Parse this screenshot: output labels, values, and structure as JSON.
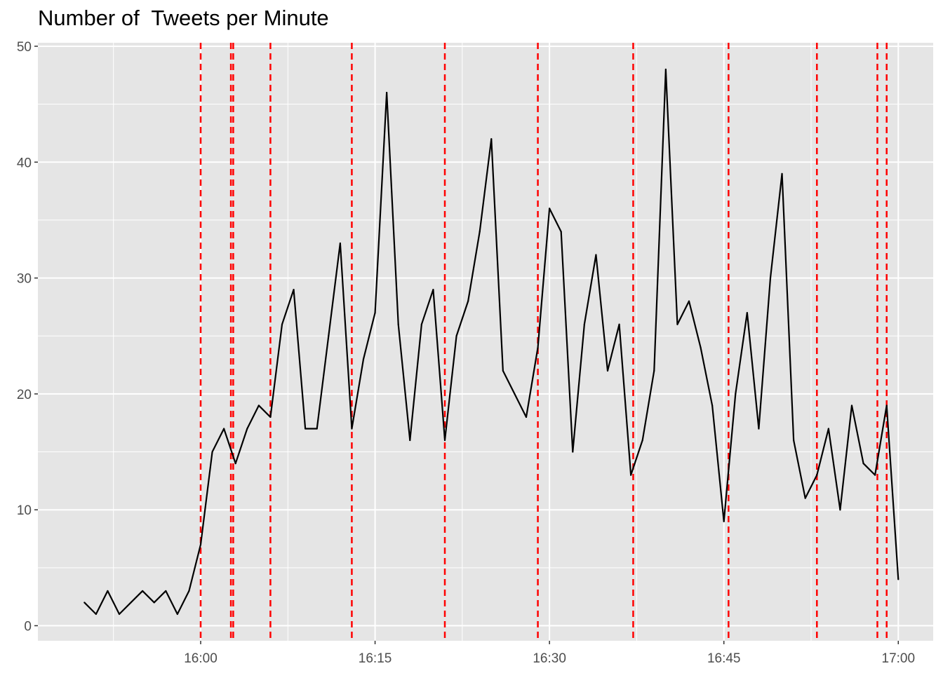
{
  "chart_data": {
    "type": "line",
    "title": "Number of  Tweets per Minute",
    "xlabel": "",
    "ylabel": "",
    "x_ticks": [
      "16:00",
      "16:15",
      "16:30",
      "16:45",
      "17:00"
    ],
    "y_ticks": [
      "0",
      "10",
      "20",
      "30",
      "40",
      "50"
    ],
    "ylim": [
      -1.3,
      50.3
    ],
    "xlim": [
      "15:46",
      "17:03"
    ],
    "grid": true,
    "legend": "none",
    "colors": {
      "panel_bg": "#e5e5e5",
      "grid": "#ffffff",
      "line": "#000000",
      "vline": "#ff0000",
      "tick_text": "#4d4d4d"
    },
    "series": [
      {
        "x": [
          "15:50",
          "15:51",
          "15:52",
          "15:53",
          "15:54",
          "15:55",
          "15:56",
          "15:57",
          "15:58",
          "15:59",
          "16:00",
          "16:01",
          "16:02",
          "16:03",
          "16:04",
          "16:05",
          "16:06",
          "16:07",
          "16:08",
          "16:09",
          "16:10",
          "16:11",
          "16:12",
          "16:13",
          "16:14",
          "16:15",
          "16:16",
          "16:17",
          "16:18",
          "16:19",
          "16:20",
          "16:21",
          "16:22",
          "16:23",
          "16:24",
          "16:25",
          "16:26",
          "16:27",
          "16:28",
          "16:29",
          "16:30",
          "16:31",
          "16:32",
          "16:33",
          "16:34",
          "16:35",
          "16:36",
          "16:37",
          "16:38",
          "16:39",
          "16:40",
          "16:41",
          "16:42",
          "16:43",
          "16:44",
          "16:45",
          "16:46",
          "16:47",
          "16:48",
          "16:49",
          "16:50",
          "16:51",
          "16:52",
          "16:53",
          "16:54",
          "16:55",
          "16:56",
          "16:57",
          "16:58",
          "16:59",
          "17:00"
        ],
        "values": [
          2,
          1,
          3,
          1,
          2,
          3,
          2,
          3,
          1,
          3,
          7,
          15,
          17,
          14,
          17,
          19,
          18,
          26,
          29,
          17,
          17,
          25,
          33,
          17,
          23,
          27,
          46,
          26,
          16,
          26,
          29,
          16,
          25,
          28,
          34,
          42,
          22,
          20,
          18,
          24,
          36,
          34,
          15,
          26,
          32,
          22,
          26,
          13,
          16,
          22,
          48,
          26,
          28,
          24,
          19,
          9,
          20,
          27,
          17,
          30,
          39,
          16,
          11,
          13,
          17,
          10,
          19,
          14,
          13,
          19,
          4
        ]
      }
    ],
    "vlines": [
      "16:00",
      "16:02.6",
      "16:02.8",
      "16:06",
      "16:13",
      "16:21",
      "16:29",
      "16:37.2",
      "16:45.4",
      "16:53",
      "16:58.2",
      "16:59"
    ]
  }
}
